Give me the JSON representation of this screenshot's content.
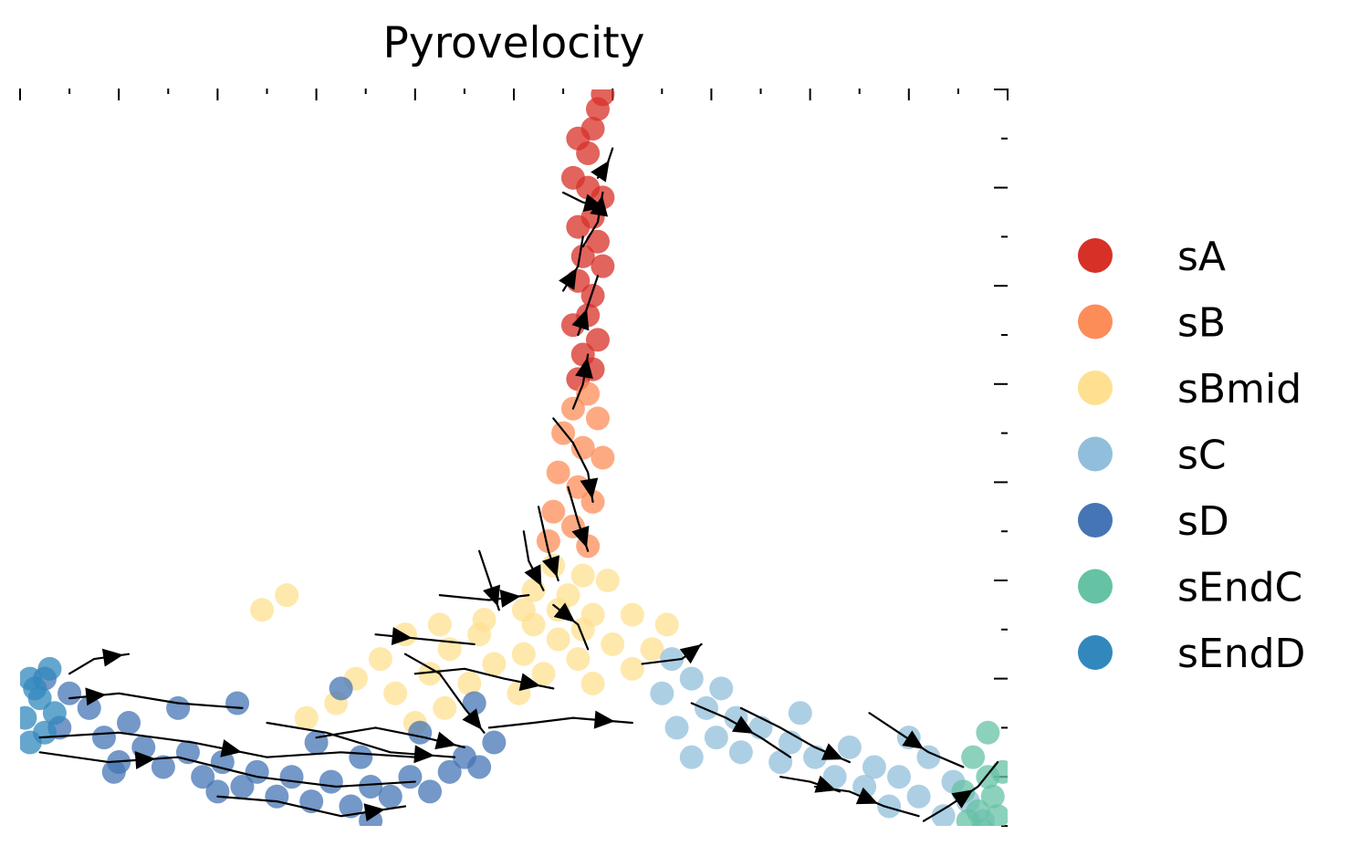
{
  "chart_data": {
    "type": "scatter",
    "subtype": "embedding-velocity-stream",
    "title": "Pyrovelocity",
    "xlabel": "",
    "ylabel": "",
    "xlim": [
      -10,
      10
    ],
    "ylim": [
      -4,
      11
    ],
    "tick_labels_visible": false,
    "grid": false,
    "legend_position": "right",
    "legend": [
      {
        "label": "sA",
        "color": "#d73027"
      },
      {
        "label": "sB",
        "color": "#fc8d59"
      },
      {
        "label": "sBmid",
        "color": "#fee090"
      },
      {
        "label": "sC",
        "color": "#91bfdb"
      },
      {
        "label": "sD",
        "color": "#4575b4"
      },
      {
        "label": "sEndC",
        "color": "#66c2a5"
      },
      {
        "label": "sEndD",
        "color": "#3288bd"
      }
    ],
    "clusters": [
      {
        "label": "sA",
        "points": [
          [
            1.8,
            10.9
          ],
          [
            1.7,
            10.6
          ],
          [
            1.6,
            10.2
          ],
          [
            1.3,
            10.0
          ],
          [
            1.5,
            9.7
          ],
          [
            1.2,
            9.2
          ],
          [
            1.5,
            9.0
          ],
          [
            1.8,
            8.8
          ],
          [
            1.6,
            8.4
          ],
          [
            1.3,
            8.2
          ],
          [
            1.7,
            7.9
          ],
          [
            1.4,
            7.6
          ],
          [
            1.8,
            7.4
          ],
          [
            1.3,
            7.1
          ],
          [
            1.6,
            6.8
          ],
          [
            1.5,
            6.4
          ],
          [
            1.2,
            6.2
          ],
          [
            1.7,
            5.9
          ],
          [
            1.4,
            5.6
          ],
          [
            1.6,
            5.3
          ],
          [
            1.3,
            5.1
          ]
        ]
      },
      {
        "label": "sB",
        "points": [
          [
            1.5,
            4.8
          ],
          [
            1.2,
            4.5
          ],
          [
            1.7,
            4.3
          ],
          [
            1.0,
            4.0
          ],
          [
            1.4,
            3.7
          ],
          [
            1.8,
            3.5
          ],
          [
            0.9,
            3.2
          ],
          [
            1.3,
            2.9
          ],
          [
            1.6,
            2.6
          ],
          [
            0.8,
            2.4
          ],
          [
            1.2,
            2.1
          ],
          [
            0.7,
            1.8
          ],
          [
            1.5,
            1.7
          ]
        ]
      },
      {
        "label": "sBmid",
        "points": [
          [
            0.8,
            1.3
          ],
          [
            1.4,
            1.1
          ],
          [
            1.9,
            1.0
          ],
          [
            0.4,
            0.8
          ],
          [
            1.1,
            0.7
          ],
          [
            0.2,
            0.4
          ],
          [
            0.9,
            0.4
          ],
          [
            1.6,
            0.3
          ],
          [
            2.4,
            0.3
          ],
          [
            -0.6,
            0.2
          ],
          [
            -1.5,
            0.1
          ],
          [
            0.4,
            0.1
          ],
          [
            1.4,
            0.0
          ],
          [
            3.1,
            0.1
          ],
          [
            -2.2,
            -0.1
          ],
          [
            -0.7,
            -0.1
          ],
          [
            0.9,
            -0.2
          ],
          [
            2.0,
            -0.3
          ],
          [
            2.8,
            -0.4
          ],
          [
            -1.3,
            -0.4
          ],
          [
            0.2,
            -0.5
          ],
          [
            1.3,
            -0.6
          ],
          [
            -2.7,
            -0.6
          ],
          [
            -0.4,
            -0.7
          ],
          [
            2.4,
            -0.8
          ],
          [
            -1.7,
            -0.9
          ],
          [
            0.6,
            -0.9
          ],
          [
            -3.2,
            -1.0
          ],
          [
            -0.9,
            -1.1
          ],
          [
            1.6,
            -1.1
          ],
          [
            -2.4,
            -1.3
          ],
          [
            0.1,
            -1.3
          ],
          [
            -3.6,
            -1.5
          ],
          [
            -1.4,
            -1.6
          ],
          [
            -4.2,
            -1.8
          ],
          [
            -2.0,
            -1.9
          ],
          [
            -5.1,
            0.4
          ],
          [
            -4.6,
            0.7
          ]
        ]
      },
      {
        "label": "sC",
        "points": [
          [
            3.2,
            -0.6
          ],
          [
            3.6,
            -1.0
          ],
          [
            3.0,
            -1.3
          ],
          [
            3.9,
            -1.6
          ],
          [
            4.5,
            -1.8
          ],
          [
            3.3,
            -2.0
          ],
          [
            4.1,
            -2.2
          ],
          [
            5.0,
            -2.0
          ],
          [
            5.6,
            -2.3
          ],
          [
            4.6,
            -2.5
          ],
          [
            6.1,
            -2.6
          ],
          [
            6.8,
            -2.4
          ],
          [
            5.4,
            -2.7
          ],
          [
            7.3,
            -2.8
          ],
          [
            6.5,
            -3.0
          ],
          [
            7.8,
            -3.0
          ],
          [
            8.4,
            -2.6
          ],
          [
            7.1,
            -3.2
          ],
          [
            8.9,
            -3.1
          ],
          [
            8.2,
            -3.4
          ],
          [
            9.2,
            -3.5
          ],
          [
            7.6,
            -3.6
          ],
          [
            9.5,
            -3.9
          ],
          [
            8.7,
            -3.8
          ],
          [
            3.6,
            -2.6
          ],
          [
            4.2,
            -1.2
          ],
          [
            5.8,
            -1.7
          ],
          [
            8.0,
            -2.2
          ]
        ]
      },
      {
        "label": "sD",
        "points": [
          [
            -9.5,
            -1.0
          ],
          [
            -9.0,
            -1.3
          ],
          [
            -8.6,
            -1.6
          ],
          [
            -9.2,
            -2.0
          ],
          [
            -8.3,
            -2.2
          ],
          [
            -7.8,
            -1.9
          ],
          [
            -7.5,
            -2.4
          ],
          [
            -8.0,
            -2.7
          ],
          [
            -7.1,
            -2.8
          ],
          [
            -6.6,
            -2.5
          ],
          [
            -6.3,
            -3.0
          ],
          [
            -5.9,
            -2.7
          ],
          [
            -5.5,
            -3.2
          ],
          [
            -5.2,
            -2.9
          ],
          [
            -4.8,
            -3.4
          ],
          [
            -4.5,
            -3.0
          ],
          [
            -4.1,
            -3.5
          ],
          [
            -3.7,
            -3.1
          ],
          [
            -3.3,
            -3.6
          ],
          [
            -2.9,
            -3.2
          ],
          [
            -2.5,
            -3.4
          ],
          [
            -2.1,
            -3.0
          ],
          [
            -1.7,
            -3.3
          ],
          [
            -1.3,
            -2.9
          ],
          [
            -1.0,
            -2.6
          ],
          [
            -0.7,
            -2.8
          ],
          [
            -0.4,
            -2.3
          ],
          [
            -6.8,
            -1.6
          ],
          [
            -4.0,
            -2.3
          ],
          [
            -3.1,
            -2.6
          ],
          [
            -1.9,
            -2.1
          ],
          [
            -8.1,
            -2.9
          ],
          [
            -6.0,
            -3.3
          ],
          [
            -5.6,
            -1.5
          ],
          [
            -2.9,
            -3.9
          ],
          [
            -0.8,
            -1.5
          ],
          [
            -3.5,
            -1.2
          ]
        ]
      },
      {
        "label": "sEndC",
        "points": [
          [
            9.3,
            -2.6
          ],
          [
            9.6,
            -3.0
          ],
          [
            9.1,
            -3.3
          ],
          [
            9.7,
            -3.4
          ],
          [
            9.4,
            -3.7
          ],
          [
            9.8,
            -3.8
          ],
          [
            9.5,
            -4.1
          ],
          [
            9.9,
            -2.9
          ],
          [
            9.2,
            -3.9
          ],
          [
            9.6,
            -2.1
          ]
        ]
      },
      {
        "label": "sEndD",
        "points": [
          [
            -9.8,
            -1.0
          ],
          [
            -9.6,
            -1.4
          ],
          [
            -9.9,
            -1.8
          ],
          [
            -9.5,
            -2.1
          ],
          [
            -9.7,
            -1.2
          ],
          [
            -9.3,
            -1.7
          ],
          [
            -9.8,
            -2.3
          ],
          [
            -9.4,
            -0.8
          ]
        ]
      }
    ],
    "streamlines": [
      {
        "points": [
          [
            -9.6,
            -2.2
          ],
          [
            -8.0,
            -2.1
          ],
          [
            -6.5,
            -2.3
          ],
          [
            -5.0,
            -2.6
          ],
          [
            -3.5,
            -2.5
          ],
          [
            -2.0,
            -2.6
          ]
        ],
        "arrow_at": 2
      },
      {
        "points": [
          [
            -9.6,
            -2.5
          ],
          [
            -8.2,
            -2.7
          ],
          [
            -6.8,
            -2.6
          ],
          [
            -5.2,
            -3.0
          ],
          [
            -3.6,
            -3.2
          ],
          [
            -2.0,
            -3.1
          ]
        ],
        "arrow_at": 1
      },
      {
        "points": [
          [
            -6.0,
            -3.4
          ],
          [
            -4.8,
            -3.5
          ],
          [
            -3.5,
            -3.8
          ],
          [
            -2.2,
            -3.6
          ]
        ],
        "arrow_at": 2
      },
      {
        "points": [
          [
            -9.0,
            -0.9
          ],
          [
            -8.5,
            -0.6
          ],
          [
            -7.8,
            -0.5
          ]
        ],
        "arrow_at": 1
      },
      {
        "points": [
          [
            -9.0,
            -1.4
          ],
          [
            -8.0,
            -1.3
          ],
          [
            -6.8,
            -1.5
          ],
          [
            -5.5,
            -1.6
          ]
        ],
        "arrow_at": 0
      },
      {
        "points": [
          [
            -4.0,
            -2.2
          ],
          [
            -2.8,
            -2.0
          ],
          [
            -1.8,
            -2.2
          ],
          [
            -1.0,
            -2.4
          ]
        ],
        "arrow_at": 2
      },
      {
        "points": [
          [
            -5.0,
            -1.9
          ],
          [
            -3.8,
            -2.1
          ],
          [
            -2.5,
            -2.5
          ],
          [
            -1.2,
            -2.6
          ]
        ],
        "arrow_at": 2
      },
      {
        "points": [
          [
            -2.2,
            -0.5
          ],
          [
            -1.5,
            -0.9
          ],
          [
            -1.0,
            -1.6
          ],
          [
            -0.6,
            -2.1
          ]
        ],
        "arrow_at": 2
      },
      {
        "points": [
          [
            -0.5,
            -2.0
          ],
          [
            0.4,
            -1.9
          ],
          [
            1.2,
            -1.8
          ],
          [
            2.4,
            -1.9
          ]
        ],
        "arrow_at": 2
      },
      {
        "points": [
          [
            -2.0,
            -0.9
          ],
          [
            -1.0,
            -0.8
          ],
          [
            -0.2,
            -1.0
          ],
          [
            0.8,
            -1.2
          ]
        ],
        "arrow_at": 2
      },
      {
        "points": [
          [
            -2.8,
            -0.1
          ],
          [
            -1.8,
            -0.2
          ],
          [
            -0.8,
            -0.3
          ]
        ],
        "arrow_at": 0
      },
      {
        "points": [
          [
            -1.5,
            0.7
          ],
          [
            -0.5,
            0.6
          ],
          [
            0.3,
            0.7
          ]
        ],
        "arrow_at": 1
      },
      {
        "points": [
          [
            -0.7,
            1.6
          ],
          [
            -0.5,
            1.0
          ],
          [
            -0.3,
            0.4
          ]
        ],
        "arrow_at": 2
      },
      {
        "points": [
          [
            0.8,
            0.5
          ],
          [
            1.3,
            0.1
          ],
          [
            1.5,
            -0.4
          ]
        ],
        "arrow_at": 0
      },
      {
        "points": [
          [
            2.6,
            -0.7
          ],
          [
            3.4,
            -0.6
          ],
          [
            3.8,
            -0.3
          ]
        ],
        "arrow_at": 2
      },
      {
        "points": [
          [
            3.6,
            -1.5
          ],
          [
            4.3,
            -1.8
          ],
          [
            5.0,
            -2.2
          ],
          [
            5.6,
            -2.6
          ]
        ],
        "arrow_at": 1
      },
      {
        "points": [
          [
            4.6,
            -1.6
          ],
          [
            5.4,
            -2.0
          ],
          [
            6.1,
            -2.4
          ],
          [
            6.8,
            -2.7
          ]
        ],
        "arrow_at": 2
      },
      {
        "points": [
          [
            7.2,
            -1.7
          ],
          [
            7.8,
            -2.1
          ],
          [
            8.4,
            -2.5
          ],
          [
            9.1,
            -2.8
          ]
        ],
        "arrow_at": 1
      },
      {
        "points": [
          [
            6.1,
            -3.2
          ],
          [
            6.8,
            -3.3
          ],
          [
            7.5,
            -3.6
          ],
          [
            8.2,
            -3.8
          ]
        ],
        "arrow_at": 1
      },
      {
        "points": [
          [
            8.3,
            -3.9
          ],
          [
            8.8,
            -3.6
          ],
          [
            9.4,
            -3.2
          ],
          [
            9.8,
            -2.7
          ]
        ],
        "arrow_at": 1
      },
      {
        "points": [
          [
            5.4,
            -3.0
          ],
          [
            6.0,
            -3.1
          ],
          [
            6.6,
            -3.3
          ]
        ],
        "arrow_at": 1
      },
      {
        "points": [
          [
            0.5,
            2.5
          ],
          [
            0.7,
            1.6
          ],
          [
            0.9,
            1.0
          ]
        ],
        "arrow_at": 1
      },
      {
        "points": [
          [
            0.2,
            2.0
          ],
          [
            0.3,
            1.4
          ],
          [
            0.6,
            0.8
          ]
        ],
        "arrow_at": 1
      },
      {
        "points": [
          [
            1.1,
            2.9
          ],
          [
            1.3,
            2.2
          ],
          [
            1.5,
            1.6
          ]
        ],
        "arrow_at": 1
      },
      {
        "points": [
          [
            0.8,
            4.3
          ],
          [
            1.2,
            3.8
          ],
          [
            1.5,
            3.2
          ],
          [
            1.6,
            2.6
          ]
        ],
        "arrow_at": 2
      },
      {
        "points": [
          [
            1.2,
            4.5
          ],
          [
            1.4,
            5.0
          ],
          [
            1.5,
            5.6
          ]
        ],
        "arrow_at": 2
      },
      {
        "points": [
          [
            1.3,
            6.0
          ],
          [
            1.5,
            6.6
          ],
          [
            1.7,
            7.2
          ]
        ],
        "arrow_at": 0
      },
      {
        "points": [
          [
            1.0,
            6.9
          ],
          [
            1.3,
            7.4
          ],
          [
            1.4,
            8.0
          ]
        ],
        "arrow_at": 0
      },
      {
        "points": [
          [
            1.4,
            7.8
          ],
          [
            1.7,
            8.3
          ],
          [
            1.8,
            8.9
          ]
        ],
        "arrow_at": 2
      },
      {
        "points": [
          [
            1.0,
            8.9
          ],
          [
            1.4,
            8.7
          ],
          [
            1.8,
            8.6
          ]
        ],
        "arrow_at": 2
      },
      {
        "points": [
          [
            1.7,
            9.2
          ],
          [
            1.9,
            9.5
          ],
          [
            2.0,
            9.8
          ]
        ],
        "arrow_at": 0
      }
    ]
  }
}
